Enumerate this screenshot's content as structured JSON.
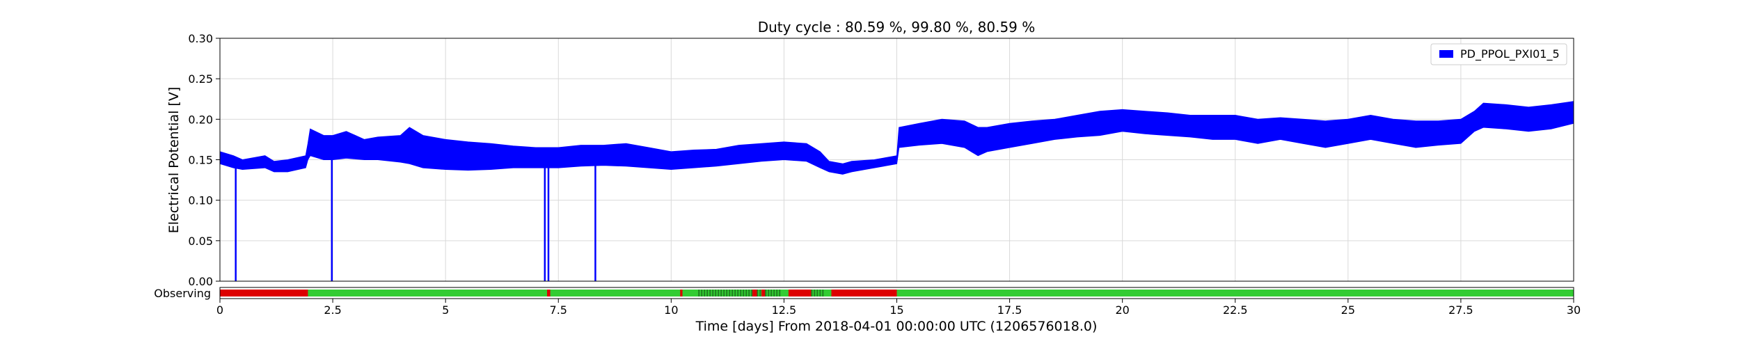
{
  "chart_data": {
    "type": "line",
    "title": "Duty cycle : 80.59 %, 99.80 %, 80.59 %",
    "xlabel": "Time [days] From 2018-04-01 00:00:00 UTC (1206576018.0)",
    "ylabel": "Electrical Potential [V]",
    "xlim": [
      0,
      30
    ],
    "ylim": [
      0,
      0.3
    ],
    "x_ticks": [
      0,
      2.5,
      5,
      7.5,
      10,
      12.5,
      15,
      17.5,
      20,
      22.5,
      25,
      27.5,
      30
    ],
    "x_tick_labels": [
      "0",
      "2.5",
      "5",
      "7.5",
      "10",
      "12.5",
      "15",
      "17.5",
      "20",
      "22.5",
      "25",
      "27.5",
      "30"
    ],
    "y_ticks": [
      0,
      0.05,
      0.1,
      0.15,
      0.2,
      0.25,
      0.3
    ],
    "y_tick_labels": [
      "0.00",
      "0.05",
      "0.10",
      "0.15",
      "0.20",
      "0.25",
      "0.30"
    ],
    "grid": true,
    "legend_position": "top-right",
    "series": [
      {
        "name": "PD_PPOL_PXI01_5",
        "color": "#0000ff",
        "envelope": {
          "x": [
            0,
            0.3,
            0.5,
            1,
            1.2,
            1.5,
            1.9,
            1.95,
            2.0,
            2.3,
            2.5,
            2.8,
            3.2,
            3.5,
            4.0,
            4.2,
            4.5,
            5,
            5.5,
            6,
            6.5,
            7,
            7.5,
            8,
            8.5,
            9,
            9.5,
            10,
            10.5,
            11,
            11.5,
            12,
            12.5,
            13,
            13.3,
            13.5,
            13.8,
            14,
            14.5,
            15,
            15.05,
            15.5,
            16,
            16.5,
            16.8,
            17,
            17.5,
            18,
            18.5,
            19,
            19.5,
            20,
            20.5,
            21,
            21.5,
            22,
            22.5,
            23,
            23.5,
            24,
            24.5,
            25,
            25.5,
            26,
            26.5,
            27,
            27.5,
            27.8,
            28,
            28.5,
            29,
            29.5,
            30
          ],
          "upper": [
            0.16,
            0.155,
            0.15,
            0.155,
            0.148,
            0.15,
            0.155,
            0.17,
            0.188,
            0.18,
            0.18,
            0.185,
            0.175,
            0.178,
            0.18,
            0.19,
            0.18,
            0.175,
            0.172,
            0.17,
            0.167,
            0.165,
            0.165,
            0.168,
            0.168,
            0.17,
            0.165,
            0.16,
            0.162,
            0.163,
            0.168,
            0.17,
            0.172,
            0.17,
            0.16,
            0.148,
            0.145,
            0.148,
            0.15,
            0.155,
            0.19,
            0.195,
            0.2,
            0.198,
            0.19,
            0.19,
            0.195,
            0.198,
            0.2,
            0.205,
            0.21,
            0.212,
            0.21,
            0.208,
            0.205,
            0.205,
            0.205,
            0.2,
            0.202,
            0.2,
            0.198,
            0.2,
            0.205,
            0.2,
            0.198,
            0.198,
            0.2,
            0.21,
            0.22,
            0.218,
            0.215,
            0.218,
            0.222
          ],
          "lower": [
            0.145,
            0.14,
            0.138,
            0.14,
            0.135,
            0.135,
            0.14,
            0.15,
            0.155,
            0.15,
            0.15,
            0.152,
            0.15,
            0.15,
            0.147,
            0.145,
            0.14,
            0.138,
            0.137,
            0.138,
            0.14,
            0.14,
            0.14,
            0.142,
            0.143,
            0.142,
            0.14,
            0.138,
            0.14,
            0.142,
            0.145,
            0.148,
            0.15,
            0.148,
            0.14,
            0.135,
            0.132,
            0.135,
            0.14,
            0.145,
            0.165,
            0.168,
            0.17,
            0.165,
            0.155,
            0.16,
            0.165,
            0.17,
            0.175,
            0.178,
            0.18,
            0.185,
            0.182,
            0.18,
            0.178,
            0.175,
            0.175,
            0.17,
            0.175,
            0.17,
            0.165,
            0.17,
            0.175,
            0.17,
            0.165,
            0.168,
            0.17,
            0.185,
            0.19,
            0.188,
            0.185,
            0.188,
            0.195
          ]
        },
        "dropouts": [
          {
            "x": 0.35,
            "to": 0.0
          },
          {
            "x": 2.48,
            "to": 0.0
          },
          {
            "x": 7.2,
            "to": 0.0
          },
          {
            "x": 7.28,
            "to": 0.0
          },
          {
            "x": 8.32,
            "to": 0.0
          }
        ]
      }
    ],
    "segment_bar": {
      "label": "Observing",
      "on_color": "#33cc33",
      "off_color": "#dd0000",
      "dense_color": "#1f7f1f",
      "off_intervals": [
        [
          0,
          1.95
        ],
        [
          7.25,
          7.32
        ],
        [
          10.2,
          10.25
        ],
        [
          11.8,
          11.9
        ],
        [
          12.0,
          12.08
        ],
        [
          12.6,
          13.1
        ],
        [
          13.55,
          15.0
        ]
      ],
      "dense_intervals": [
        [
          10.6,
          12.4
        ],
        [
          13.1,
          13.35
        ]
      ]
    }
  }
}
